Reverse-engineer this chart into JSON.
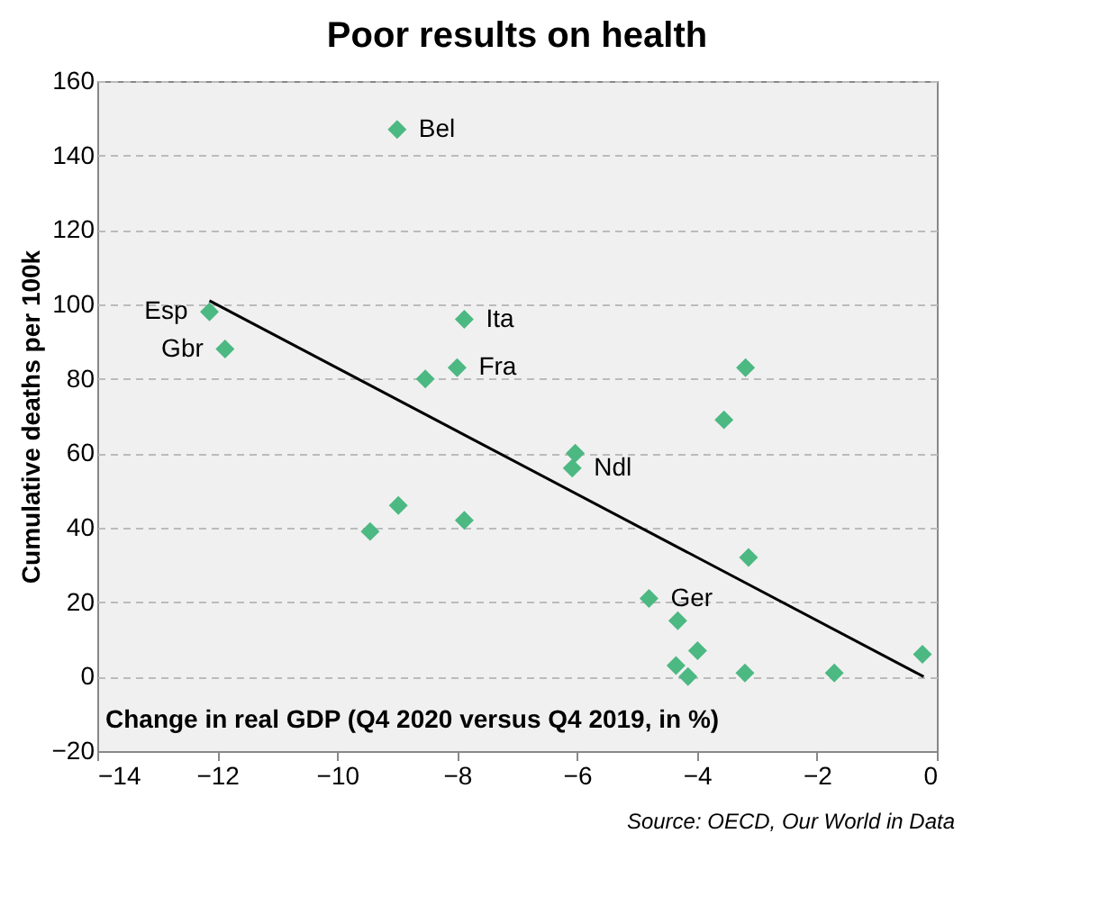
{
  "chart_data": {
    "type": "scatter",
    "title": "Poor results on health",
    "xlabel": "Change in real GDP (Q4 2020 versus Q4 2019, in %)",
    "ylabel": "Cumulative deaths per 100k",
    "series": [
      {
        "type": "scatter",
        "marker": "diamond",
        "color": "#4cb882",
        "x": [
          -9.0,
          -12.13,
          -11.87,
          -7.88,
          -8.0,
          -8.53,
          -8.98,
          -9.45,
          -7.88,
          -3.19,
          -3.55,
          -6.03,
          -6.08,
          -3.14,
          -4.8,
          -4.32,
          -3.99,
          -4.35,
          -4.15,
          -3.2,
          -1.71,
          -0.24
        ],
        "values": [
          147,
          98,
          88,
          96,
          83,
          80,
          46,
          39,
          42,
          83,
          69,
          60,
          56,
          32,
          21,
          15,
          7,
          3,
          0,
          1,
          1,
          6
        ]
      },
      {
        "type": "line",
        "color": "#000000",
        "x": [
          -12.13,
          -0.22
        ],
        "values": [
          101,
          0
        ]
      }
    ],
    "annotations": [
      {
        "text": "Bel",
        "x": -9.0,
        "y": 147
      },
      {
        "text": "Esp",
        "x": -12.13,
        "y": 98
      },
      {
        "text": "Gbr",
        "x": -11.87,
        "y": 88
      },
      {
        "text": "Ita",
        "x": -7.88,
        "y": 96
      },
      {
        "text": "Fra",
        "x": -8.0,
        "y": 83
      },
      {
        "text": "Ndl",
        "x": -6.08,
        "y": 56
      },
      {
        "text": "Ger",
        "x": -4.8,
        "y": 21
      },
      "Source: OECD, Our World in Data"
    ],
    "xlim": [
      -14,
      0
    ],
    "xticks": [
      -14,
      -12,
      -10,
      -8,
      -6,
      -4,
      -2,
      0
    ],
    "ylim": [
      -20,
      160
    ],
    "yticks": [
      -20,
      0,
      20,
      40,
      60,
      80,
      100,
      120,
      140,
      160
    ],
    "grid": "y",
    "line_style": "solid"
  }
}
